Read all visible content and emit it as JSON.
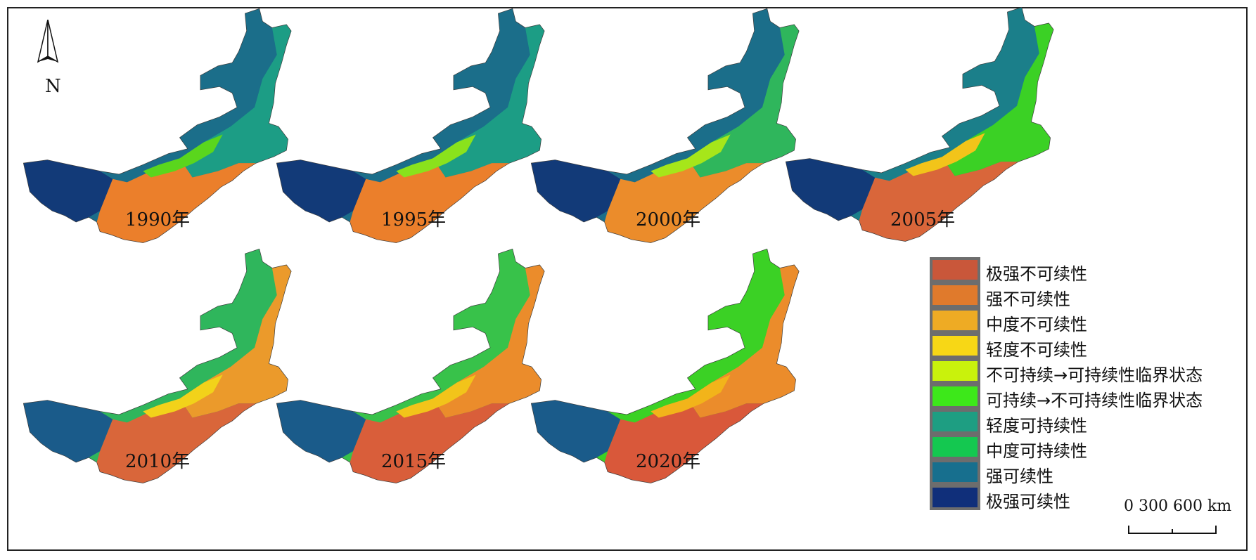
{
  "north_arrow": {
    "label": "N"
  },
  "maps": [
    {
      "year": "1990年",
      "west_color": "#123a78",
      "mid_color": "#1b6e8a",
      "east_color": "#1c9d85",
      "south_color": "#eb7f2b",
      "accent_color": "#5ad61d"
    },
    {
      "year": "1995年",
      "west_color": "#123a78",
      "mid_color": "#1b6e8a",
      "east_color": "#1c9d85",
      "south_color": "#eb7f2b",
      "accent_color": "#8ae21c"
    },
    {
      "year": "2000年",
      "west_color": "#123a78",
      "mid_color": "#1b6e8a",
      "east_color": "#2fb65c",
      "south_color": "#eb8c2b",
      "accent_color": "#a6e61a"
    },
    {
      "year": "2005年",
      "west_color": "#123a78",
      "mid_color": "#1b7f8a",
      "east_color": "#3bd125",
      "south_color": "#d9663a",
      "accent_color": "#f2c41a"
    },
    {
      "year": "2010年",
      "west_color": "#1a5b8a",
      "mid_color": "#2fb65c",
      "east_color": "#eb9a2b",
      "south_color": "#d9663a",
      "accent_color": "#f2d21a"
    },
    {
      "year": "2015年",
      "west_color": "#1a5b8a",
      "mid_color": "#38c24a",
      "east_color": "#eb8c2b",
      "south_color": "#d95e3a",
      "accent_color": "#f2c41a"
    },
    {
      "year": "2020年",
      "west_color": "#1a5b8a",
      "mid_color": "#3bd125",
      "east_color": "#eb8c2b",
      "south_color": "#d9583a",
      "accent_color": "#f2b41a"
    }
  ],
  "legend": [
    {
      "label": "极强不可续性",
      "color": "#c9573a"
    },
    {
      "label": "强不可续性",
      "color": "#e07a2c"
    },
    {
      "label": "中度不可续性",
      "color": "#eeab24"
    },
    {
      "label": "轻度不可续性",
      "color": "#f7d716"
    },
    {
      "label": "不可持续→可持续性临界状态",
      "color": "#c9f20c"
    },
    {
      "label": "可持续→不可持续性临界状态",
      "color": "#3de81a"
    },
    {
      "label": "轻度可持续性",
      "color": "#1e9e82"
    },
    {
      "label": "中度可持续性",
      "color": "#14c850"
    },
    {
      "label": "强可续性",
      "color": "#176f8e"
    },
    {
      "label": "极强可续性",
      "color": "#102f7a"
    }
  ],
  "scale": {
    "text": "0  300  600 km"
  }
}
